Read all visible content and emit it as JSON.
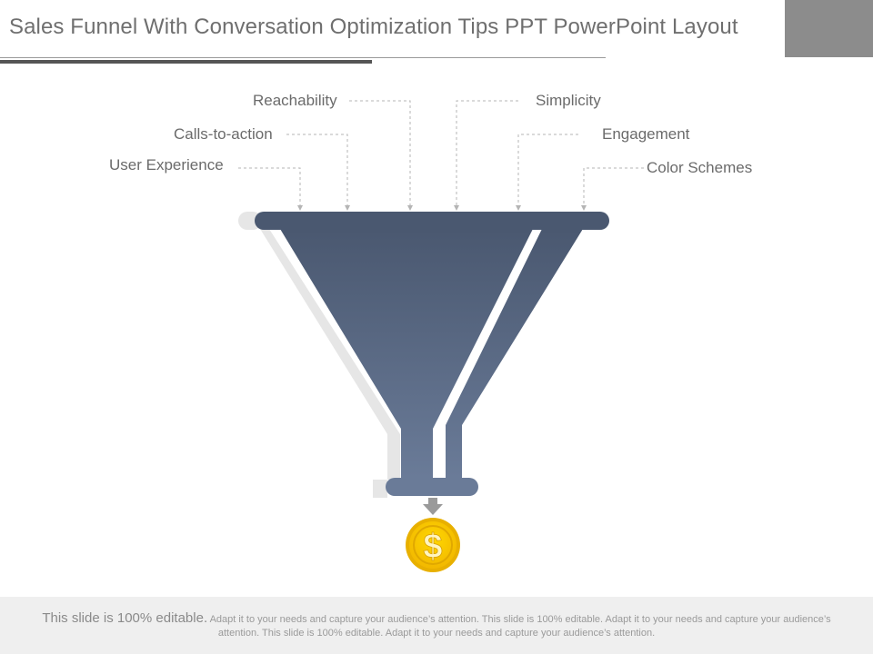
{
  "slide": {
    "title": "Sales Funnel With Conversation Optimization Tips PPT PowerPoint Layout"
  },
  "funnel": {
    "left_labels": [
      "Reachability",
      "Calls-to-action",
      "User Experience"
    ],
    "right_labels": [
      "Simplicity",
      "Engagement",
      "Color Schemes"
    ],
    "output_symbol": "$",
    "colors": {
      "funnel_top": "#4a5870",
      "funnel_bottom": "#6a7b98",
      "coin": "#f7c800",
      "coin_rim": "#e0a800",
      "arrow": "#9a9a9a"
    }
  },
  "footer": {
    "lead": "This slide is 100% editable.",
    "body": "Adapt it to your needs and capture your audience’s attention. This slide is 100% editable. Adapt it to your needs and capture your audience’s attention. This slide is 100% editable. Adapt it to your needs and capture your audience’s attention."
  }
}
